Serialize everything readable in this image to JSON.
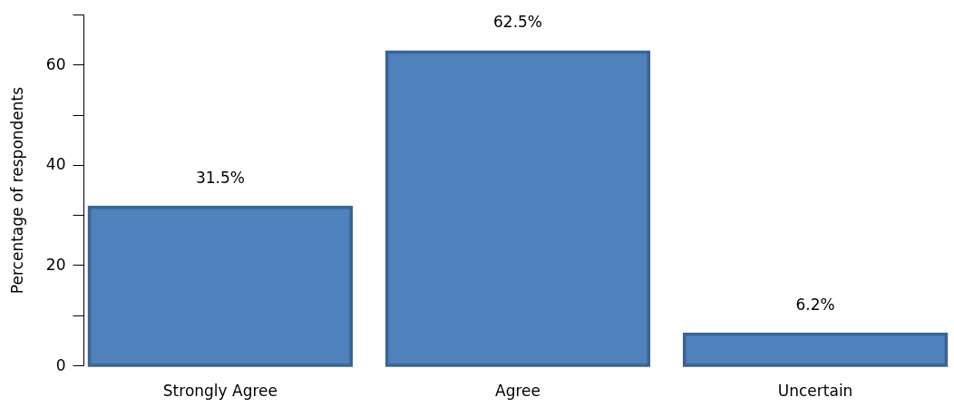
{
  "chart_data": {
    "type": "bar",
    "ylabel": "Percentage of respondents",
    "categories": [
      "Strongly Agree",
      "Agree",
      "Uncertain"
    ],
    "values": [
      31.5,
      62.5,
      6.2
    ],
    "value_labels": [
      "31.5%",
      "62.5%",
      "6.2%"
    ],
    "color": "#4f81bd",
    "ylim": [
      0,
      70
    ],
    "yticks": [
      0,
      {
        "value": 10,
        "label": null
      },
      20,
      {
        "value": 30,
        "label": null
      },
      40,
      {
        "value": 50,
        "label": null
      },
      60,
      {
        "value": 70,
        "label": null
      }
    ],
    "grid": false
  }
}
